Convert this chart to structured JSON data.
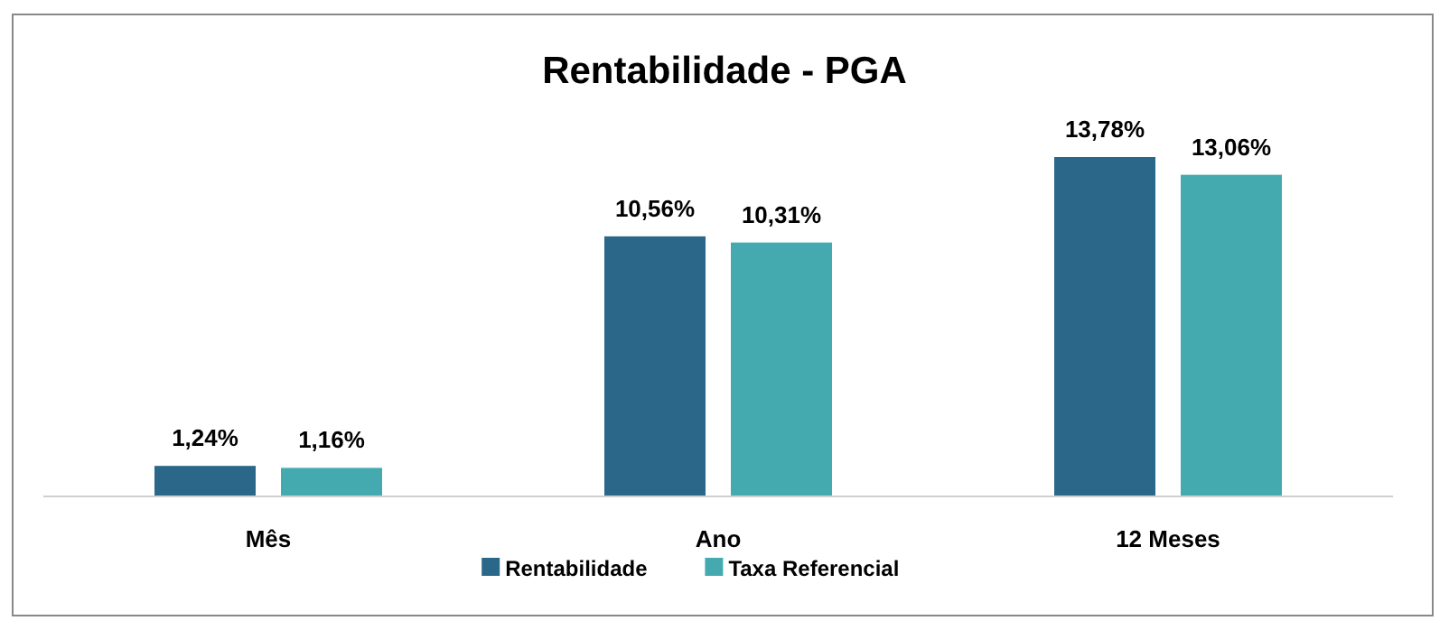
{
  "chart_data": {
    "type": "bar",
    "title": "Rentabilidade - PGA",
    "categories": [
      "Mês",
      "Ano",
      "12 Meses"
    ],
    "series": [
      {
        "name": "Rentabilidade",
        "color": "#2a6789",
        "values": [
          1.24,
          10.56,
          13.78
        ],
        "value_labels": [
          "1,24%",
          "10,56%",
          "13,78%"
        ]
      },
      {
        "name": "Taxa Referencial",
        "color": "#45aab0",
        "values": [
          1.16,
          10.31,
          13.06
        ],
        "value_labels": [
          "1,16%",
          "10,31%",
          "13,06%"
        ]
      }
    ],
    "legend": "bottom",
    "grid": false
  }
}
